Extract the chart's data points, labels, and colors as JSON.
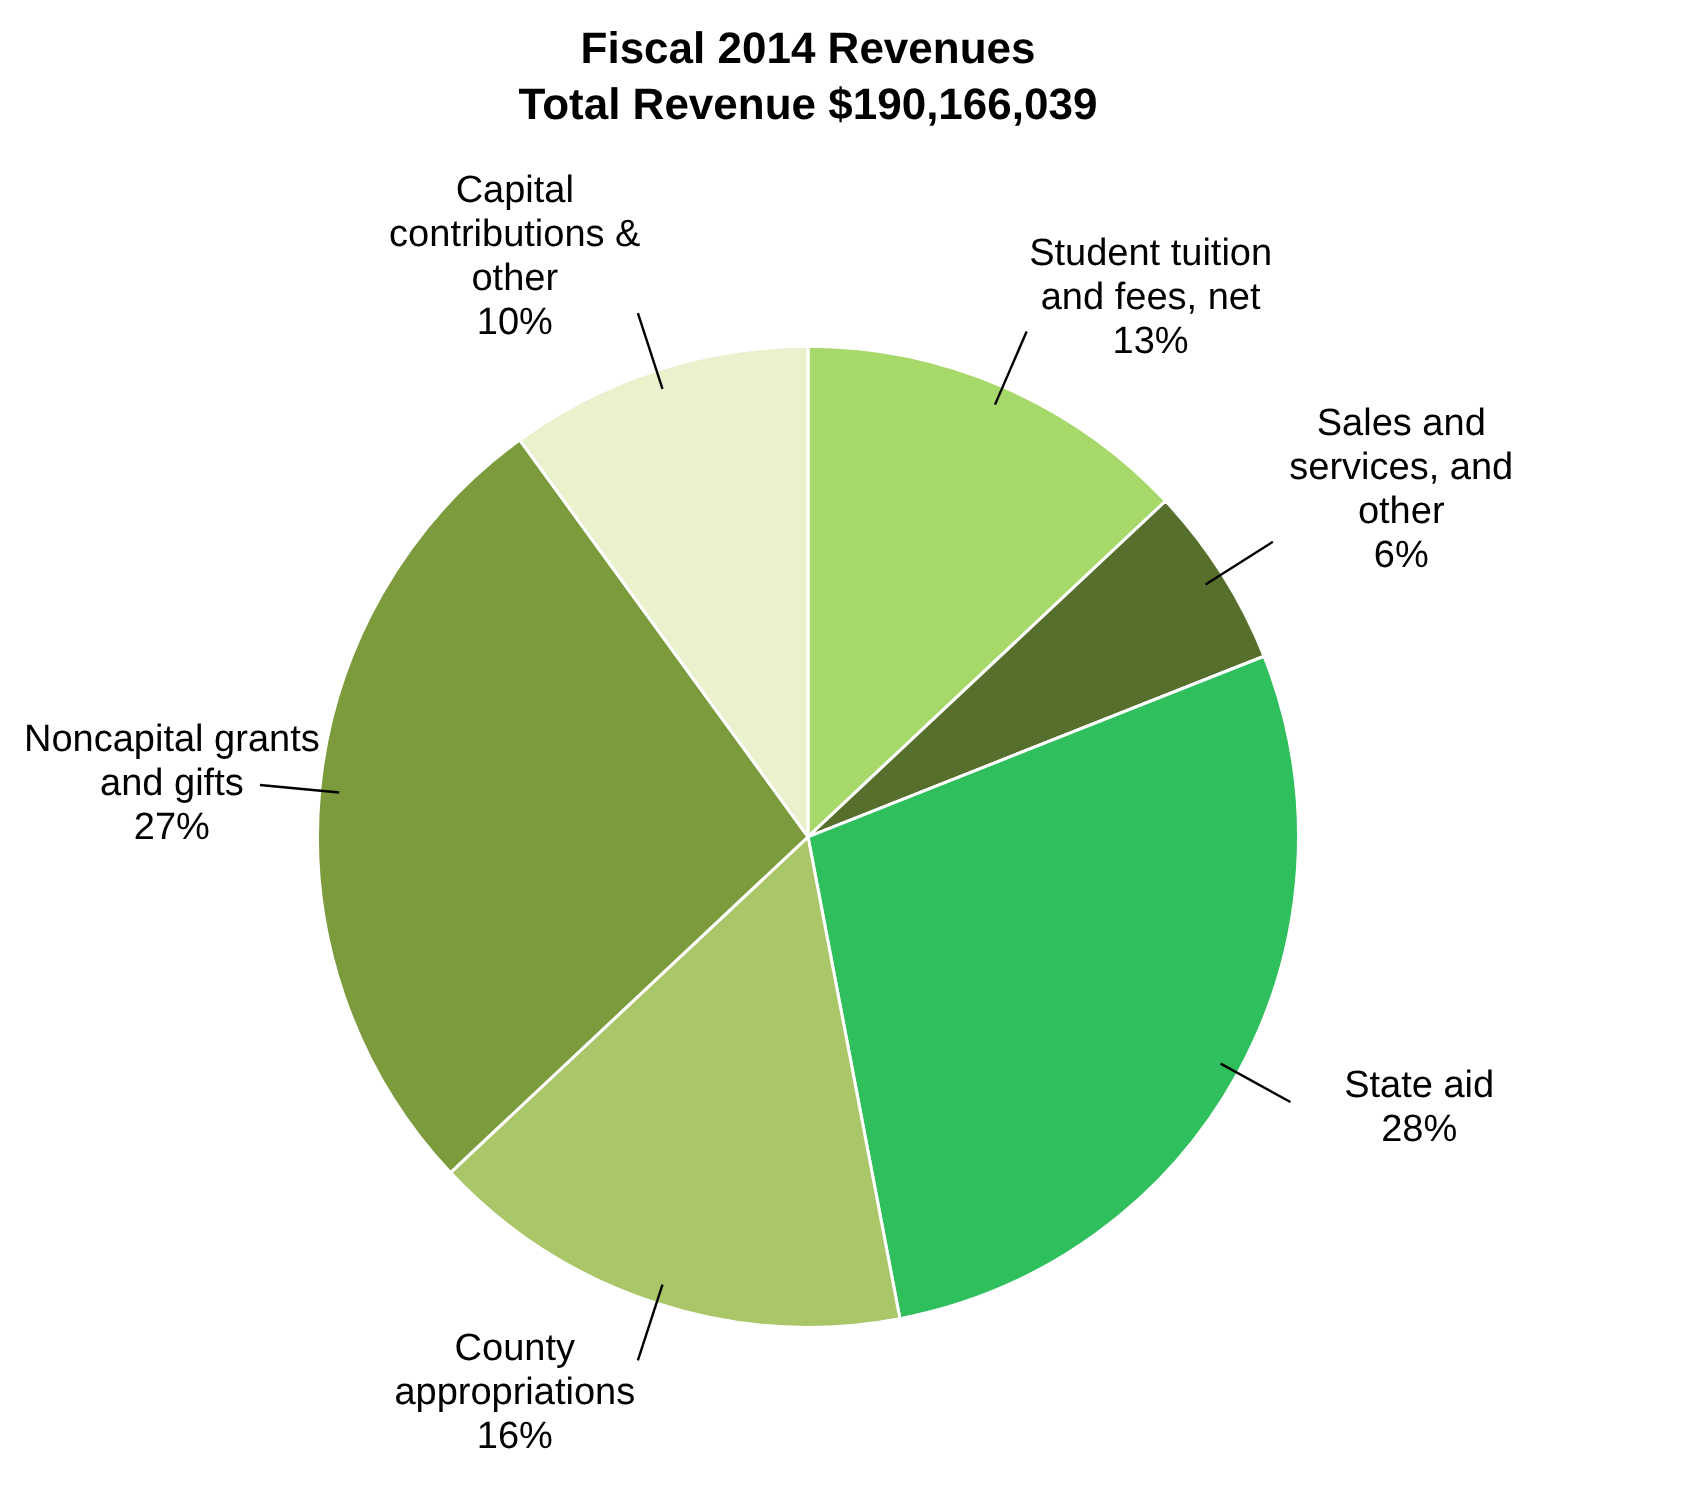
{
  "chart_data": {
    "type": "pie",
    "title": "Fiscal 2014 Revenues",
    "subtitle": "Total Revenue $190,166,039",
    "categories": [
      "Student tuition and fees, net",
      "Sales and services, and other",
      "State aid",
      "County appropriations",
      "Noncapital grants and gifts",
      "Capital contributions & other"
    ],
    "values": [
      13,
      6,
      28,
      16,
      27,
      10
    ],
    "value_labels": [
      "13%",
      "6%",
      "28%",
      "16%",
      "27%",
      "10%"
    ],
    "colors": [
      "#a6d86a",
      "#566f2c",
      "#2fbf5c",
      "#a9c769",
      "#7b9b3c",
      "#e9f2cc"
    ],
    "legend": false
  }
}
